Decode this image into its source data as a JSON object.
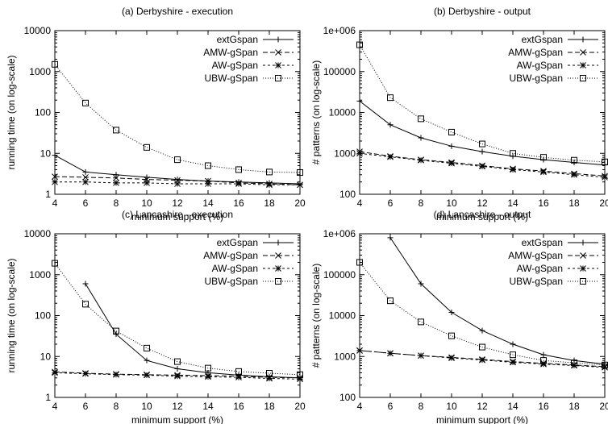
{
  "chart_data": [
    {
      "type": "line",
      "title": "(a) Derbyshire - execution",
      "xlabel": "minimum support (%)",
      "ylabel": "running time (on log-scale)",
      "yscale": "log",
      "xlim": [
        4,
        20
      ],
      "ylim": [
        1,
        10000
      ],
      "xticks": [
        "4",
        "6",
        "8",
        "10",
        "12",
        "14",
        "16",
        "18",
        "20"
      ],
      "yticks": [
        {
          "v": 1,
          "label": "1"
        },
        {
          "v": 10,
          "label": "10"
        },
        {
          "v": 100,
          "label": "100"
        },
        {
          "v": 1000,
          "label": "1000"
        },
        {
          "v": 10000,
          "label": "10000"
        }
      ],
      "legend_position": "top-right",
      "x": [
        4,
        6,
        8,
        10,
        12,
        14,
        16,
        18,
        20
      ],
      "series": [
        {
          "name": "extGspan",
          "marker": "plus",
          "dash": "",
          "values": [
            9,
            3.5,
            3,
            2.6,
            2.3,
            2.1,
            2.0,
            1.9,
            1.8
          ]
        },
        {
          "name": "AMW-gSpan",
          "marker": "x",
          "dash": "6,3",
          "values": [
            2.7,
            2.6,
            2.5,
            2.3,
            2.2,
            2.1,
            1.9,
            1.8,
            1.7
          ]
        },
        {
          "name": "AW-gSpan",
          "marker": "star",
          "dash": "3,3",
          "values": [
            2.0,
            2.0,
            1.9,
            1.9,
            1.8,
            1.8,
            1.8,
            1.7,
            1.7
          ]
        },
        {
          "name": "UBW-gSpan",
          "marker": "square",
          "dash": "1,2",
          "values": [
            1500,
            170,
            37,
            14,
            7,
            5,
            4,
            3.5,
            3.4
          ]
        }
      ]
    },
    {
      "type": "line",
      "title": "(b) Derbyshire - output",
      "xlabel": "minimum support (%)",
      "ylabel": "# patterns (on log-scale)",
      "yscale": "log",
      "xlim": [
        4,
        20
      ],
      "ylim": [
        100,
        1000000
      ],
      "xticks": [
        "4",
        "6",
        "8",
        "10",
        "12",
        "14",
        "16",
        "18",
        "20"
      ],
      "yticks": [
        {
          "v": 100,
          "label": "100"
        },
        {
          "v": 1000,
          "label": "1000"
        },
        {
          "v": 10000,
          "label": "10000"
        },
        {
          "v": 100000,
          "label": "100000"
        },
        {
          "v": 1000000,
          "label": "1e+006"
        }
      ],
      "legend_position": "top-right",
      "x": [
        4,
        6,
        8,
        10,
        12,
        14,
        16,
        18,
        20
      ],
      "series": [
        {
          "name": "extGspan",
          "marker": "plus",
          "dash": "",
          "values": [
            19000,
            5000,
            2400,
            1500,
            1100,
            850,
            700,
            600,
            520
          ]
        },
        {
          "name": "AMW-gSpan",
          "marker": "x",
          "dash": "6,3",
          "values": [
            1100,
            850,
            700,
            600,
            500,
            420,
            370,
            320,
            280
          ]
        },
        {
          "name": "AW-gSpan",
          "marker": "star",
          "dash": "3,3",
          "values": [
            1000,
            820,
            680,
            570,
            480,
            400,
            350,
            300,
            260
          ]
        },
        {
          "name": "UBW-gSpan",
          "marker": "square",
          "dash": "1,2",
          "values": [
            450000,
            23000,
            7000,
            3300,
            1700,
            1000,
            800,
            680,
            620
          ]
        }
      ]
    },
    {
      "type": "line",
      "title": "(c) Lancashire - execution",
      "xlabel": "minimum support (%)",
      "ylabel": "running time (on log-scale)",
      "yscale": "log",
      "xlim": [
        4,
        20
      ],
      "ylim": [
        1,
        10000
      ],
      "xticks": [
        "4",
        "6",
        "8",
        "10",
        "12",
        "14",
        "16",
        "18",
        "20"
      ],
      "yticks": [
        {
          "v": 1,
          "label": "1"
        },
        {
          "v": 10,
          "label": "10"
        },
        {
          "v": 100,
          "label": "100"
        },
        {
          "v": 1000,
          "label": "1000"
        },
        {
          "v": 10000,
          "label": "10000"
        }
      ],
      "legend_position": "top-right",
      "x": [
        4,
        6,
        8,
        10,
        12,
        14,
        16,
        18,
        20
      ],
      "series": [
        {
          "name": "extGspan",
          "marker": "plus",
          "dash": "",
          "values": [
            null,
            600,
            35,
            8,
            5,
            4,
            3.5,
            3.2,
            3
          ]
        },
        {
          "name": "AMW-gSpan",
          "marker": "x",
          "dash": "6,3",
          "values": [
            4.2,
            3.9,
            3.7,
            3.6,
            3.5,
            3.4,
            3.3,
            3.1,
            3.0
          ]
        },
        {
          "name": "AW-gSpan",
          "marker": "star",
          "dash": "3,3",
          "values": [
            4.0,
            3.8,
            3.6,
            3.5,
            3.3,
            3.2,
            3.1,
            2.9,
            2.8
          ]
        },
        {
          "name": "UBW-gSpan",
          "marker": "square",
          "dash": "1,2",
          "values": [
            1900,
            190,
            42,
            16,
            7.5,
            5.2,
            4.3,
            3.9,
            3.6
          ]
        }
      ]
    },
    {
      "type": "line",
      "title": "(d) Lancashire - output",
      "xlabel": "minimum support (%)",
      "ylabel": "# patterns (on log-scale)",
      "yscale": "log",
      "xlim": [
        4,
        20
      ],
      "ylim": [
        100,
        1000000
      ],
      "xticks": [
        "4",
        "6",
        "8",
        "10",
        "12",
        "14",
        "16",
        "18",
        "20"
      ],
      "yticks": [
        {
          "v": 100,
          "label": "100"
        },
        {
          "v": 1000,
          "label": "1000"
        },
        {
          "v": 10000,
          "label": "10000"
        },
        {
          "v": 100000,
          "label": "100000"
        },
        {
          "v": 1000000,
          "label": "1e+006"
        }
      ],
      "legend_position": "top-right",
      "x": [
        4,
        6,
        8,
        10,
        12,
        14,
        16,
        18,
        20
      ],
      "series": [
        {
          "name": "extGspan",
          "marker": "plus",
          "dash": "",
          "values": [
            null,
            800000,
            60000,
            12000,
            4300,
            2000,
            1100,
            800,
            650
          ]
        },
        {
          "name": "AMW-gSpan",
          "marker": "x",
          "dash": "6,3",
          "values": [
            1400,
            1200,
            1050,
            950,
            850,
            750,
            680,
            620,
            560
          ]
        },
        {
          "name": "AW-gSpan",
          "marker": "star",
          "dash": "3,3",
          "values": [
            1400,
            1200,
            1050,
            920,
            820,
            720,
            650,
            600,
            540
          ]
        },
        {
          "name": "UBW-gSpan",
          "marker": "square",
          "dash": "1,2",
          "values": [
            200000,
            23000,
            7000,
            3200,
            1700,
            1100,
            800,
            700,
            620
          ]
        }
      ]
    }
  ]
}
